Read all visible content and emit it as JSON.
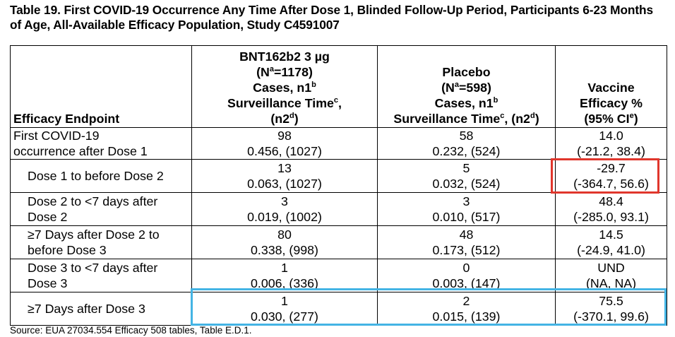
{
  "title": "Table 19. First COVID-19 Occurrence Any Time After Dose 1, Blinded Follow-Up Period, Participants 6-23 Months of Age, All-Available Efficacy Population, Study C4591007",
  "headers": {
    "endpoint": "Efficacy Endpoint",
    "bnt": {
      "l1": "BNT162b2 3 µg",
      "l2_pre": "(N",
      "l2_sup": "a",
      "l2_post": "=1178)",
      "l3_pre": "Cases, n1",
      "l3_sup": "b",
      "l4_pre": "Surveillance Time",
      "l4_sup": "c",
      "l4_post": ",",
      "l5_pre": "(n2",
      "l5_sup": "d",
      "l5_post": ")"
    },
    "placebo": {
      "l1": "Placebo",
      "l2_pre": "(N",
      "l2_sup": "a",
      "l2_post": "=598)",
      "l3_pre": "Cases, n1",
      "l3_sup": "b",
      "l4_pre": "Surveillance Time",
      "l4_sup": "c",
      "l4_mid": ", (n2",
      "l4_sup2": "d",
      "l4_post": ")"
    },
    "ve": {
      "l1": "Vaccine",
      "l2": "Efficacy %",
      "l3_pre": "(95% CI",
      "l3_sup": "e",
      "l3_post": ")"
    }
  },
  "rows": [
    {
      "endpoint": [
        "First COVID-19",
        "occurrence after Dose 1"
      ],
      "bnt": [
        "98",
        "0.456, (1027)"
      ],
      "placebo": [
        "58",
        "0.232, (524)"
      ],
      "ve": [
        "14.0",
        "(-21.2, 38.4)"
      ]
    },
    {
      "endpoint": [
        "Dose 1 to before Dose 2"
      ],
      "bnt": [
        "13",
        "0.063, (1027)"
      ],
      "placebo": [
        "5",
        "0.032, (524)"
      ],
      "ve": [
        "-29.7",
        "(-364.7, 56.6)"
      ]
    },
    {
      "endpoint": [
        "Dose 2 to <7 days after",
        "Dose 2"
      ],
      "bnt": [
        "3",
        "0.019, (1002)"
      ],
      "placebo": [
        "3",
        "0.010, (517)"
      ],
      "ve": [
        "48.4",
        "(-285.0, 93.1)"
      ]
    },
    {
      "endpoint": [
        "≥7 Days after Dose 2 to",
        "before Dose 3"
      ],
      "bnt": [
        "80",
        "0.338, (998)"
      ],
      "placebo": [
        "48",
        "0.173, (512)"
      ],
      "ve": [
        "14.5",
        "(-24.9, 41.0)"
      ]
    },
    {
      "endpoint": [
        "Dose 3 to <7 days after",
        "Dose 3"
      ],
      "bnt": [
        "1",
        "0.006, (336)"
      ],
      "placebo": [
        "0",
        "0.003, (147)"
      ],
      "ve": [
        "UND",
        "(NA, NA)"
      ]
    },
    {
      "endpoint": [
        "≥7 Days after Dose 3"
      ],
      "bnt": [
        "1",
        "0.030, (277)"
      ],
      "placebo": [
        "2",
        "0.015, (139)"
      ],
      "ve": [
        "75.5",
        "(-370.1, 99.6)"
      ]
    }
  ],
  "source": "Source: EUA 27034.554 Efficacy 508 tables, Table E.D.1.",
  "highlights": {
    "red": "#e0362c",
    "blue": "#44b4e4"
  }
}
